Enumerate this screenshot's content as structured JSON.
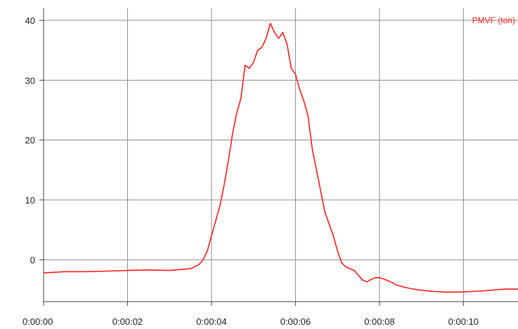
{
  "chart_data": {
    "type": "line",
    "title": "",
    "xlabel": "",
    "ylabel": "",
    "xlim_seconds": [
      0,
      11.3
    ],
    "ylim": [
      -7,
      42
    ],
    "grid": true,
    "legend_placement": "top-right",
    "x_ticks": [
      {
        "value": 0,
        "label": "0:00:00"
      },
      {
        "value": 2,
        "label": "0:00:02"
      },
      {
        "value": 4,
        "label": "0:00:04"
      },
      {
        "value": 6,
        "label": "0:00:06"
      },
      {
        "value": 8,
        "label": "0:00:08"
      },
      {
        "value": 10,
        "label": "0:00:10"
      }
    ],
    "y_ticks": [
      {
        "value": 40,
        "label": "40"
      },
      {
        "value": 30,
        "label": "30"
      },
      {
        "value": 20,
        "label": "20"
      },
      {
        "value": 10,
        "label": "10"
      },
      {
        "value": 0,
        "label": "0"
      }
    ],
    "series": [
      {
        "name": "PMVF (ton)",
        "color": "#ff2020",
        "x": [
          0,
          0.5,
          1,
          1.5,
          2,
          2.5,
          3,
          3.3,
          3.5,
          3.7,
          3.8,
          3.9,
          4.0,
          4.1,
          4.2,
          4.3,
          4.4,
          4.5,
          4.6,
          4.7,
          4.8,
          4.9,
          5.0,
          5.1,
          5.2,
          5.3,
          5.4,
          5.5,
          5.6,
          5.7,
          5.8,
          5.9,
          6.0,
          6.1,
          6.2,
          6.3,
          6.4,
          6.5,
          6.6,
          6.7,
          6.8,
          6.9,
          7.0,
          7.1,
          7.2,
          7.3,
          7.4,
          7.5,
          7.6,
          7.7,
          7.8,
          7.9,
          8.0,
          8.1,
          8.2,
          8.3,
          8.4,
          8.6,
          8.8,
          9.0,
          9.3,
          9.6,
          9.9,
          10.2,
          10.5,
          10.8,
          11.0,
          11.3
        ],
        "y": [
          -2.2,
          -2.0,
          -2.0,
          -1.9,
          -1.8,
          -1.7,
          -1.8,
          -1.6,
          -1.5,
          -0.8,
          0.0,
          1.5,
          4.0,
          6.5,
          9.0,
          12.5,
          16.5,
          21.0,
          24.5,
          27.0,
          32.5,
          32.0,
          33.0,
          35.0,
          35.5,
          37.0,
          39.5,
          38.0,
          37.0,
          38.0,
          36.0,
          32.0,
          31.0,
          28.5,
          26.5,
          24.0,
          18.5,
          15.0,
          11.5,
          8.0,
          6.0,
          4.0,
          1.5,
          -0.5,
          -1.2,
          -1.5,
          -1.8,
          -2.6,
          -3.4,
          -3.7,
          -3.3,
          -3.0,
          -3.0,
          -3.2,
          -3.5,
          -3.8,
          -4.2,
          -4.6,
          -4.9,
          -5.1,
          -5.3,
          -5.4,
          -5.4,
          -5.3,
          -5.2,
          -5.0,
          -4.9,
          -4.9
        ]
      }
    ]
  }
}
